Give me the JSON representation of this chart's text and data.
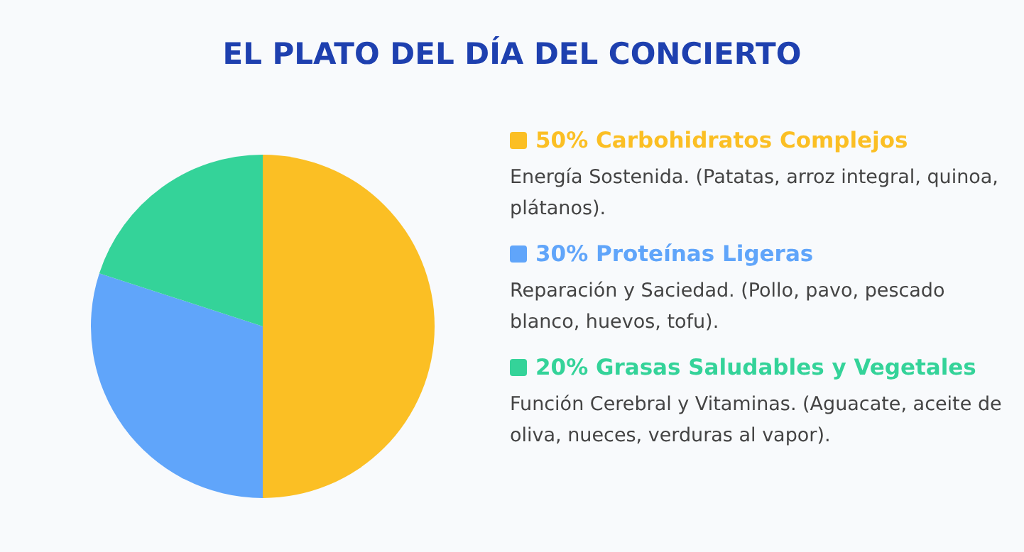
{
  "chart_data": {
    "type": "pie",
    "title": "EL PLATO DEL DÍA DEL CONCIERTO",
    "categories": [
      "Carbohidratos Complejos",
      "Proteínas Ligeras",
      "Grasas Saludables y Vegetales"
    ],
    "values": [
      50,
      30,
      20
    ],
    "value_labels": [
      "50%",
      "30%",
      "20%"
    ],
    "colors": [
      "#fbbf24",
      "#60a5fa",
      "#34d399"
    ],
    "legend": "right",
    "annotations": [
      "Energía Sostenida. (Patatas, arroz integral, quinoa, plátanos).",
      "Reparación y Saciedad. (Pollo, pavo, pescado blanco, huevos, tofu).",
      "Función Cerebral y Vitaminas. (Aguacate, aceite de oliva, nueces, verduras al vapor)."
    ]
  }
}
